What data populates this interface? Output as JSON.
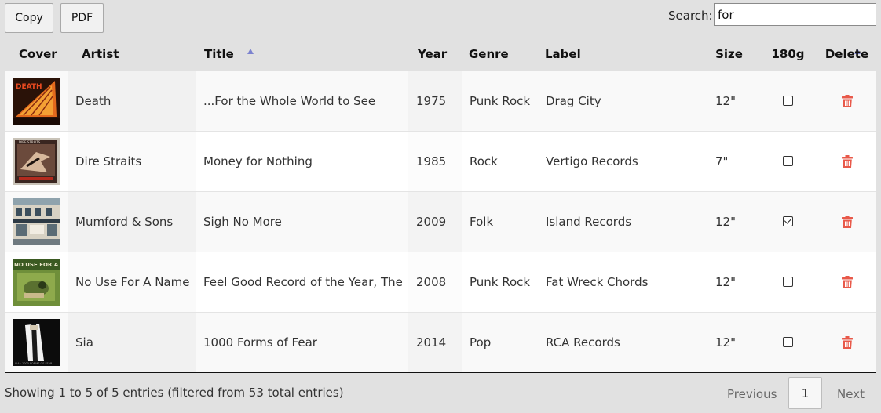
{
  "toolbar": {
    "copy_label": "Copy",
    "pdf_label": "PDF"
  },
  "search": {
    "label": "Search:",
    "value": "for"
  },
  "columns": [
    "Cover",
    "Artist",
    "Title",
    "Year",
    "Genre",
    "Label",
    "Size",
    "180g",
    "Delete"
  ],
  "sorted_columns": [
    "Artist",
    "Year"
  ],
  "rows": [
    {
      "cover": "death-album-cover",
      "artist": "Death",
      "title": "...For the Whole World to See",
      "year": "1975",
      "genre": "Punk Rock",
      "label": "Drag City",
      "size": "12\"",
      "is180g": false
    },
    {
      "cover": "dire-straits-album-cover",
      "artist": "Dire Straits",
      "title": "Money for Nothing",
      "year": "1985",
      "genre": "Rock",
      "label": "Vertigo Records",
      "size": "7\"",
      "is180g": false
    },
    {
      "cover": "mumford-sons-album-cover",
      "artist": "Mumford & Sons",
      "title": "Sigh No More",
      "year": "2009",
      "genre": "Folk",
      "label": "Island Records",
      "size": "12\"",
      "is180g": true
    },
    {
      "cover": "no-use-for-a-name-album-cover",
      "artist": "No Use For A Name",
      "title": "Feel Good Record of the Year, The",
      "year": "2008",
      "genre": "Punk Rock",
      "label": "Fat Wreck Chords",
      "size": "12\"",
      "is180g": false
    },
    {
      "cover": "sia-album-cover",
      "artist": "Sia",
      "title": "1000 Forms of Fear",
      "year": "2014",
      "genre": "Pop",
      "label": "RCA Records",
      "size": "12\"",
      "is180g": false
    }
  ],
  "footer": {
    "info": "Showing 1 to 5 of 5 entries (filtered from 53 total entries)",
    "previous": "Previous",
    "current_page": "1",
    "next": "Next"
  },
  "colors": {
    "delete_icon": "#e8594a",
    "sort_arrow": "#7b82cf",
    "background": "#e1e1e1"
  }
}
